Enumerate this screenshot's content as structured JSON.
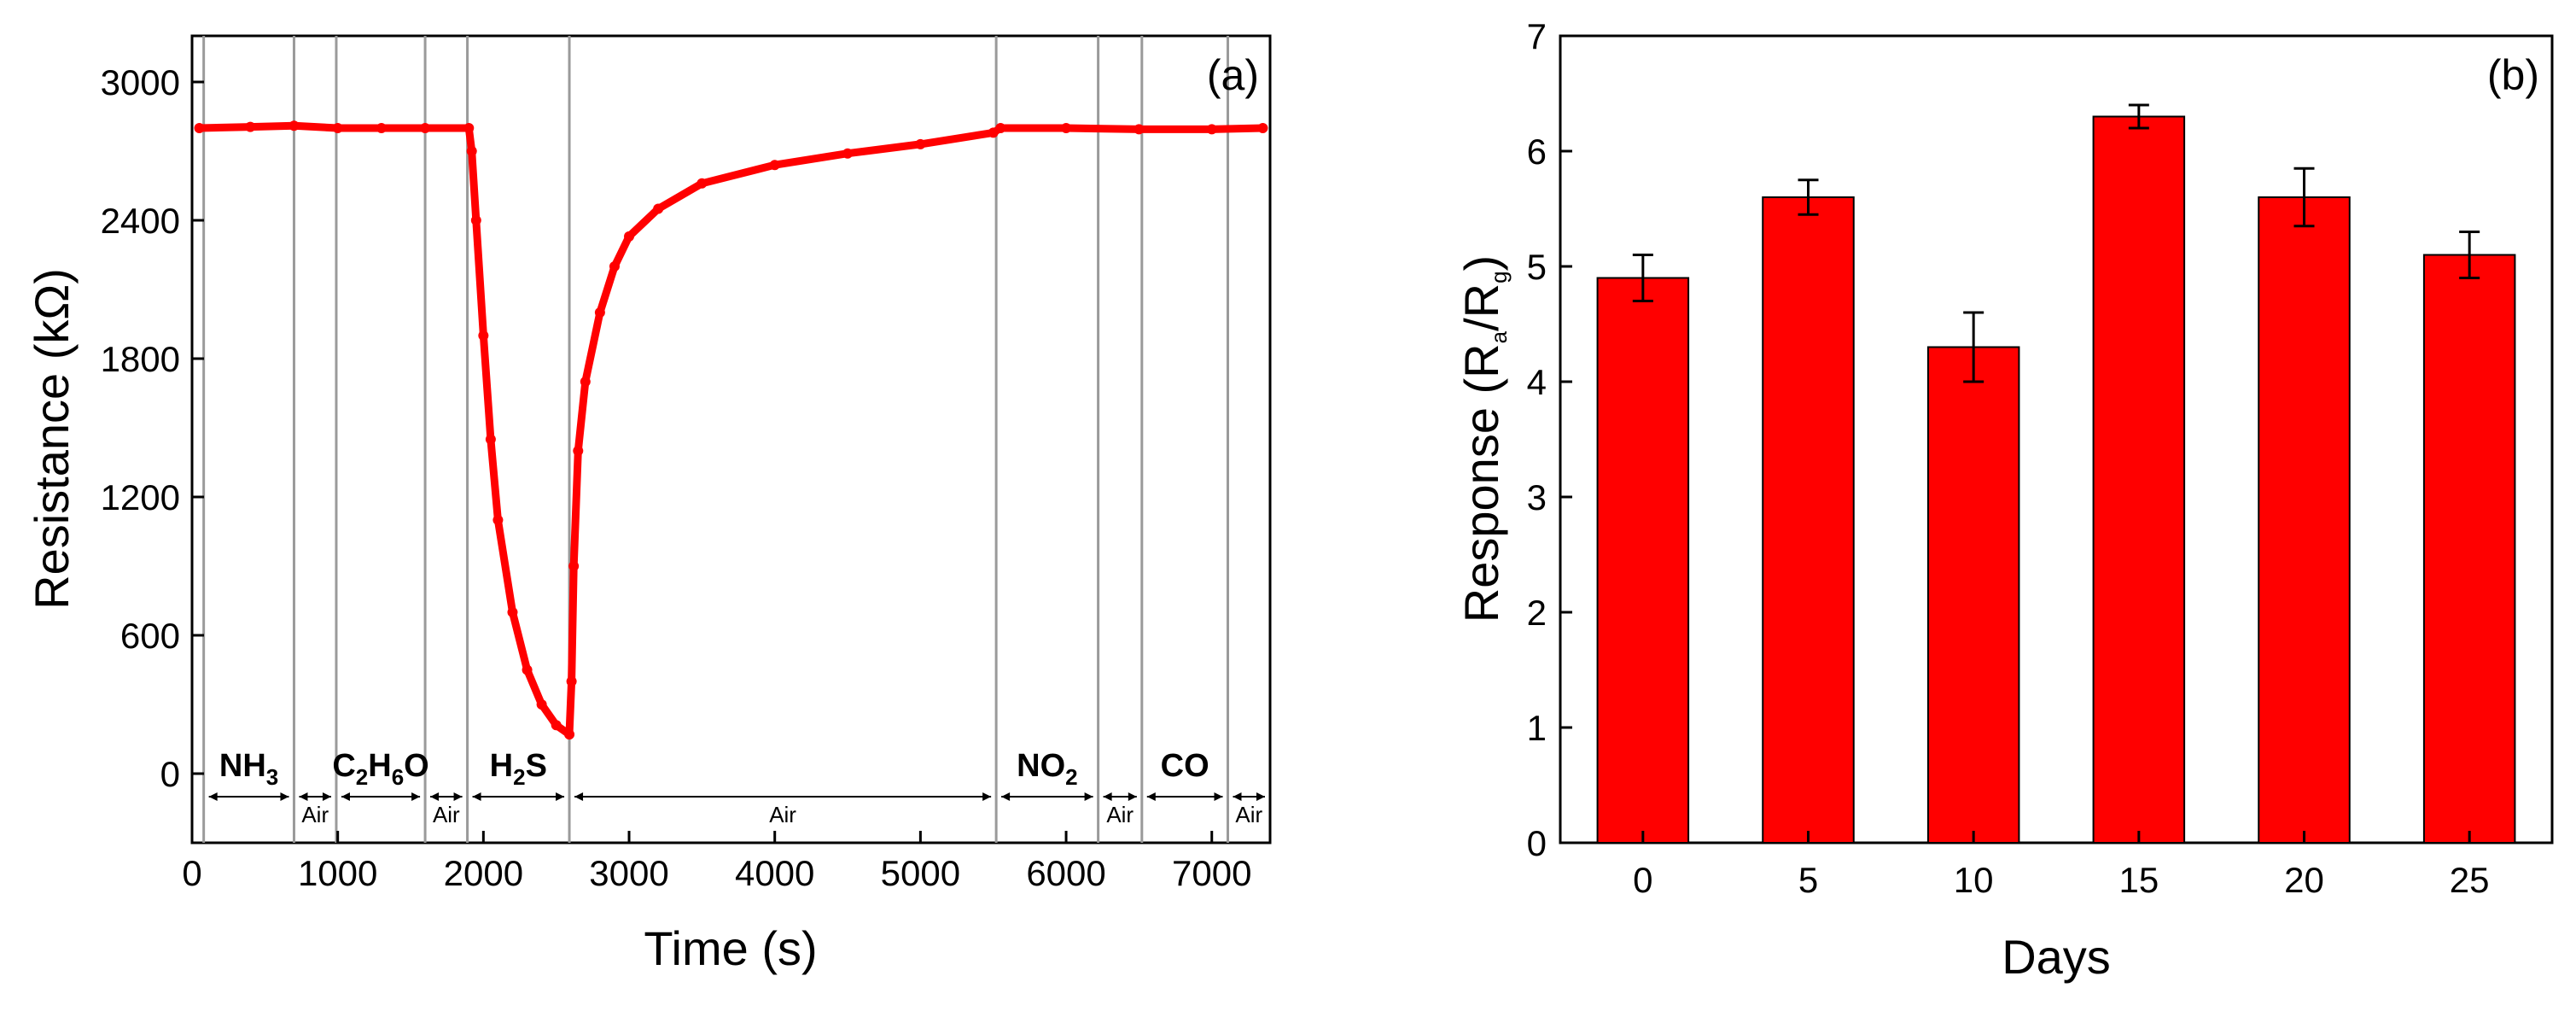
{
  "colors": {
    "accent": "#ff0000",
    "frame": "#000000",
    "divider": "#9a9a9a"
  },
  "chart_data": [
    {
      "type": "line",
      "panel_label": "(a)",
      "title": "",
      "xlabel": "Time (s)",
      "ylabel": "Resistance (kΩ)",
      "xlim": [
        0,
        7400
      ],
      "ylim": [
        -300,
        3200
      ],
      "xticks": [
        "0",
        "1000",
        "2000",
        "3000",
        "4000",
        "5000",
        "6000",
        "7000"
      ],
      "yticks": [
        "0",
        "600",
        "1200",
        "1800",
        "2400",
        "3000"
      ],
      "series": [
        {
          "name": "Resistance",
          "points": [
            [
              50,
              2800
            ],
            [
              400,
              2805
            ],
            [
              700,
              2810
            ],
            [
              1000,
              2800
            ],
            [
              1300,
              2800
            ],
            [
              1600,
              2800
            ],
            [
              1900,
              2800
            ],
            [
              1920,
              2700
            ],
            [
              1950,
              2400
            ],
            [
              2000,
              1900
            ],
            [
              2050,
              1450
            ],
            [
              2100,
              1100
            ],
            [
              2200,
              700
            ],
            [
              2300,
              450
            ],
            [
              2400,
              300
            ],
            [
              2500,
              210
            ],
            [
              2590,
              170
            ],
            [
              2605,
              400
            ],
            [
              2620,
              900
            ],
            [
              2650,
              1400
            ],
            [
              2700,
              1700
            ],
            [
              2800,
              2000
            ],
            [
              2900,
              2200
            ],
            [
              3000,
              2330
            ],
            [
              3200,
              2450
            ],
            [
              3500,
              2560
            ],
            [
              4000,
              2640
            ],
            [
              4500,
              2690
            ],
            [
              5000,
              2730
            ],
            [
              5500,
              2780
            ],
            [
              5550,
              2800
            ],
            [
              6000,
              2800
            ],
            [
              6500,
              2795
            ],
            [
              7000,
              2795
            ],
            [
              7350,
              2800
            ]
          ]
        }
      ],
      "segments": [
        {
          "label": "NH",
          "sub": "3",
          "start": 80,
          "end": 700
        },
        {
          "label": "Air",
          "sub": "",
          "start": 700,
          "end": 990
        },
        {
          "label": "C",
          "sub": "2",
          "label2": "H",
          "sub2": "6",
          "label3": "O",
          "start": 990,
          "end": 1600
        },
        {
          "label": "Air",
          "sub": "",
          "start": 1600,
          "end": 1890
        },
        {
          "label": "H",
          "sub": "2",
          "label2": "S",
          "start": 1890,
          "end": 2590
        },
        {
          "label": "Air",
          "sub": "",
          "start": 2590,
          "end": 5520
        },
        {
          "label": "NO",
          "sub": "2",
          "start": 5520,
          "end": 6220
        },
        {
          "label": "Air",
          "sub": "",
          "start": 6220,
          "end": 6520
        },
        {
          "label": "CO",
          "sub": "",
          "start": 6520,
          "end": 7110
        },
        {
          "label": "Air",
          "sub": "",
          "start": 7110,
          "end": 7400
        }
      ],
      "dividers": [
        80,
        700,
        990,
        1600,
        1890,
        2590,
        5520,
        6220,
        6520,
        7110
      ]
    },
    {
      "type": "bar",
      "panel_label": "(b)",
      "title": "",
      "xlabel": "Days",
      "ylabel": "Response (R",
      "ylabel_sub1": "a",
      "ylabel_mid": "/R",
      "ylabel_sub2": "g",
      "ylabel_end": ")",
      "categories": [
        "0",
        "5",
        "10",
        "15",
        "20",
        "25"
      ],
      "values": [
        4.9,
        5.6,
        4.3,
        6.3,
        5.6,
        5.1
      ],
      "errors": [
        0.2,
        0.15,
        0.3,
        0.1,
        0.25,
        0.2
      ],
      "ylim": [
        0,
        7
      ],
      "yticks": [
        "0",
        "1",
        "2",
        "3",
        "4",
        "5",
        "6",
        "7"
      ]
    }
  ]
}
